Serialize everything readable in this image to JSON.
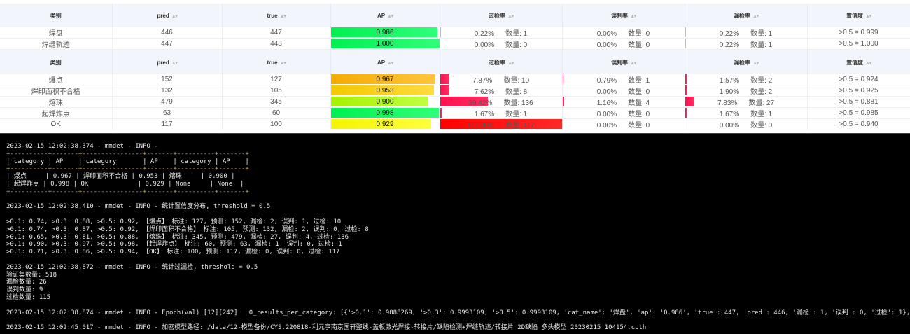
{
  "columns": [
    "类别",
    "pred",
    "true",
    "AP",
    "过检率",
    "误判率",
    "漏检率",
    "置信度"
  ],
  "count_label": "数量:",
  "colors": {
    "header_bg": "#f2f5fb",
    "ap_bar_high": "#00ff44",
    "ap_bar_low": "#b0ff00",
    "rate_bar": "#ff1744",
    "terminal_bg": "#000000"
  },
  "table1": [
    {
      "cat": "焊盘",
      "pred": "446",
      "true": "447",
      "ap": "0.986",
      "over": "0.22%",
      "over_n": "1",
      "mis": "0.00%",
      "mis_n": "0",
      "miss": "0.22%",
      "miss_n": "1",
      "conf": ">0.5 = 0.999"
    },
    {
      "cat": "焊缝轨迹",
      "pred": "447",
      "true": "448",
      "ap": "1.000",
      "over": "0.00%",
      "over_n": "0",
      "mis": "0.00%",
      "mis_n": "0",
      "miss": "0.22%",
      "miss_n": "1",
      "conf": ">0.5 = 1.000"
    }
  ],
  "table2": [
    {
      "cat": "爆点",
      "pred": "152",
      "true": "127",
      "ap": "0.967",
      "over": "7.87%",
      "over_n": "10",
      "mis": "0.79%",
      "mis_n": "1",
      "miss": "1.57%",
      "miss_n": "2",
      "conf": ">0.5 = 0.924"
    },
    {
      "cat": "焊印面积不合格",
      "pred": "132",
      "true": "105",
      "ap": "0.953",
      "over": "7.62%",
      "over_n": "8",
      "mis": "0.00%",
      "mis_n": "0",
      "miss": "1.90%",
      "miss_n": "2",
      "conf": ">0.5 = 0.925"
    },
    {
      "cat": "熔珠",
      "pred": "479",
      "true": "345",
      "ap": "0.900",
      "over": "39.42%",
      "over_n": "136",
      "mis": "1.16%",
      "mis_n": "4",
      "miss": "7.83%",
      "miss_n": "27",
      "conf": ">0.5 = 0.881"
    },
    {
      "cat": "起焊炸点",
      "pred": "63",
      "true": "60",
      "ap": "0.998",
      "over": "1.67%",
      "over_n": "1",
      "mis": "0.00%",
      "mis_n": "0",
      "miss": "1.67%",
      "miss_n": "1",
      "conf": ">0.5 = 0.985"
    },
    {
      "cat": "OK",
      "pred": "117",
      "true": "100",
      "ap": "0.929",
      "over": "117.00%",
      "over_n": "117",
      "mis": "0.00%",
      "mis_n": "0",
      "miss": "0.00%",
      "miss_n": "0",
      "conf": ">0.5 = 0.940"
    }
  ],
  "terminal_lines": [
    "2023-02-15 12:02:38,374 - mmdet - INFO -",
    "+----------+-------+----------------+-------+----------+-------+",
    "| category | AP    | category       | AP    | category | AP    |",
    "+----------+-------+----------------+-------+----------+-------+",
    "| 爆点     | 0.967 | 焊印面积不合格 | 0.953 | 熔珠     | 0.900 |",
    "| 起焊炸点 | 0.998 | OK             | 0.929 | None     | None  |",
    "+----------+-------+----------------+-------+----------+-------+",
    "",
    "2023-02-15 12:02:38,410 - mmdet - INFO - 统计置信度分布, threshold = 0.5",
    "",
    ">0.1: 0.74, >0.3: 0.88, >0.5: 0.92, 【爆点】 标注: 127, 预测: 152, 漏检: 2, 误判: 1, 过检: 10",
    ">0.1: 0.74, >0.3: 0.87, >0.5: 0.92, 【焊印面积不合格】 标注: 105, 预测: 132, 漏检: 2, 误判: 0, 过检: 8",
    ">0.1: 0.65, >0.3: 0.81, >0.5: 0.88, 【熔珠】 标注: 345, 预测: 479, 漏检: 27, 误判: 4, 过检: 136",
    ">0.1: 0.90, >0.3: 0.97, >0.5: 0.98, 【起焊炸点】 标注: 60, 预测: 63, 漏检: 1, 误判: 0, 过检: 1",
    ">0.1: 0.71, >0.3: 0.86, >0.5: 0.94, 【OK】 标注: 100, 预测: 117, 漏检: 0, 误判: 0, 过检: 117",
    "",
    "2023-02-15 12:02:38,872 - mmdet - INFO - 统计过漏检, threshold = 0.5",
    "验证集数量: 518",
    "漏检数量: 26",
    "误判数量: 9",
    "过检数量: 115",
    "",
    "2023-02-15 12:02:38,874 - mmdet - INFO - Epoch(val) [12][242]   0_results_per_category: [{'>0.1': 0.9888269, '>0.3': 0.9993109, '>0.5': 0.9993109, 'cat_name': '焊盘', 'ap': '0.986', 'true': 447, 'pred': 446, '漏检': 1, '误判': 0, '过检': 1}, {'>0.1': 0.99998033, '>0.3': 0.9",
    "",
    "2023-02-15 12:02:45,017 - mmdet - INFO - 加密模型路径: /data/12-模型备份/CYS.220818-利元亨南京国轩整线-盖板激光焊接-转接片/缺陷检测+焊缝轨迹/转接片_2D缺陷_多头模型_20230215_104154.cpth"
  ]
}
